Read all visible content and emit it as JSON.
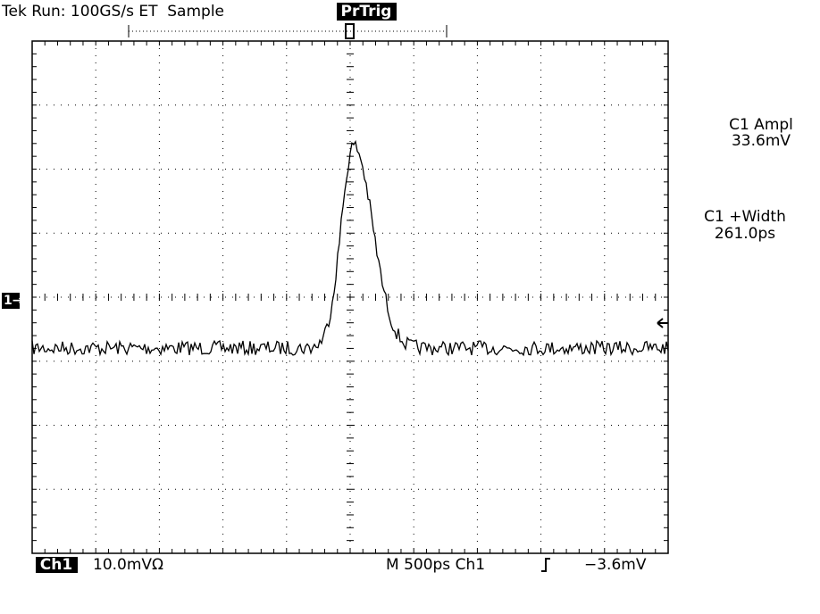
{
  "header": {
    "status": "Tek Run: 100GS/s ET  Sample",
    "trigger_state": "PrTrig"
  },
  "measurements": [
    {
      "label": "C1 Ampl",
      "value": "33.6mV"
    },
    {
      "label": "C1 +Width",
      "value": "261.0ps"
    }
  ],
  "footer": {
    "channel": "Ch1",
    "scale": "10.0mVΩ",
    "timebase": "M 500ps Ch1",
    "trigger_level": "−3.6mV"
  },
  "markers": {
    "channel": "1→"
  }
}
